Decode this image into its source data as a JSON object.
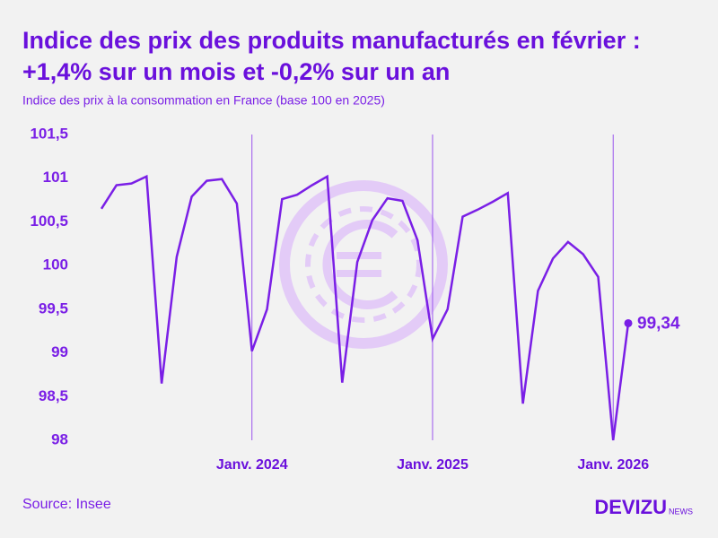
{
  "chart_data": {
    "type": "line",
    "title": "Indice des prix des produits manufacturés en février :",
    "title_line2": "+1,4% sur un mois et -0,2% sur un an",
    "subtitle": "Indice des prix à la consommation en France (base 100 en 2025)",
    "source": "Source: Insee",
    "brand": "DEVIZU",
    "brand_suffix": "NEWS",
    "categories": [
      null,
      null,
      null,
      null,
      null,
      null,
      null,
      null,
      null,
      null,
      "Janv. 2024",
      null,
      null,
      null,
      null,
      null,
      null,
      null,
      null,
      null,
      null,
      null,
      "Janv. 2025",
      null,
      null,
      null,
      null,
      null,
      null,
      null,
      null,
      null,
      null,
      null,
      "Janv. 2026",
      null
    ],
    "values": [
      100.65,
      100.92,
      100.94,
      101.02,
      98.65,
      100.1,
      100.79,
      100.97,
      100.99,
      100.71,
      99.02,
      99.5,
      100.76,
      100.81,
      100.92,
      101.02,
      98.66,
      100.04,
      100.52,
      100.77,
      100.74,
      100.29,
      99.16,
      99.5,
      100.56,
      100.64,
      100.73,
      100.83,
      98.42,
      99.71,
      100.08,
      100.27,
      100.13,
      99.87,
      98.0,
      99.34
    ],
    "value_labels": [
      null,
      null,
      null,
      null,
      null,
      null,
      null,
      null,
      null,
      null,
      null,
      null,
      null,
      null,
      null,
      null,
      null,
      null,
      null,
      null,
      null,
      null,
      null,
      null,
      null,
      null,
      null,
      null,
      null,
      null,
      null,
      null,
      null,
      null,
      null,
      "99,34"
    ],
    "color": "#7a1fe6",
    "ylim": [
      98,
      101.5
    ],
    "yticks": [
      {
        "value": 98,
        "label": "98"
      },
      {
        "value": 98.5,
        "label": "98,5"
      },
      99,
      {
        "value": 99.5,
        "label": "99,5"
      },
      100,
      {
        "value": 100.5,
        "label": "100,5"
      },
      101,
      {
        "value": 101.5,
        "label": "101,5"
      }
    ],
    "x_grid": true
  }
}
